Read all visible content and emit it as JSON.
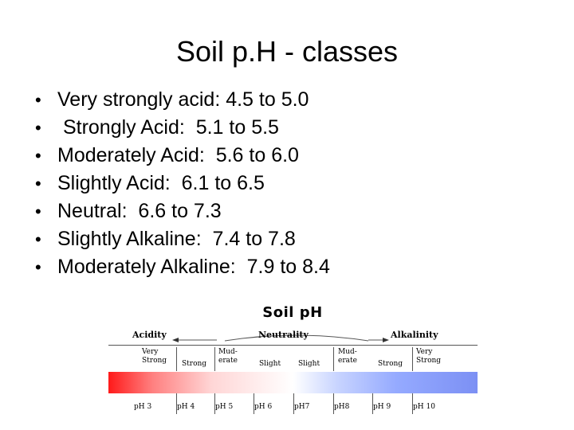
{
  "title": "Soil p.H - classes",
  "bullets": [
    "Very strongly acid: 4.5 to 5.0",
    " Strongly Acid:  5.1 to 5.5",
    "Moderately Acid:  5.6 to 6.0",
    "Slightly Acid:  6.1 to 6.5",
    "Neutral:  6.6 to 7.3",
    "Slightly Alkaline:  7.4 to 7.8",
    "Moderately Alkaline:  7.9 to 8.4"
  ],
  "bullet_symbol": "•",
  "figure": {
    "title": "Soil pH",
    "categories": {
      "acidity": "Acidity",
      "neutrality": "Neutrality",
      "alkalinity": "Alkalinity"
    },
    "classes": [
      "Very\nStrong",
      "Strong",
      "Mud-\nerate",
      "Slight",
      "Slight",
      "Mud-\nerate",
      "Strong",
      "Very\nStrong"
    ],
    "ph_labels": [
      "pH 3",
      "pH 4",
      "pH 5",
      "pH 6",
      "pH7",
      "pH8",
      "pH 9",
      "pH 10"
    ],
    "gradient_colors": {
      "acid": "#ff1a1a",
      "neutral": "#ffffff",
      "alkaline": "#7c90f4"
    }
  }
}
